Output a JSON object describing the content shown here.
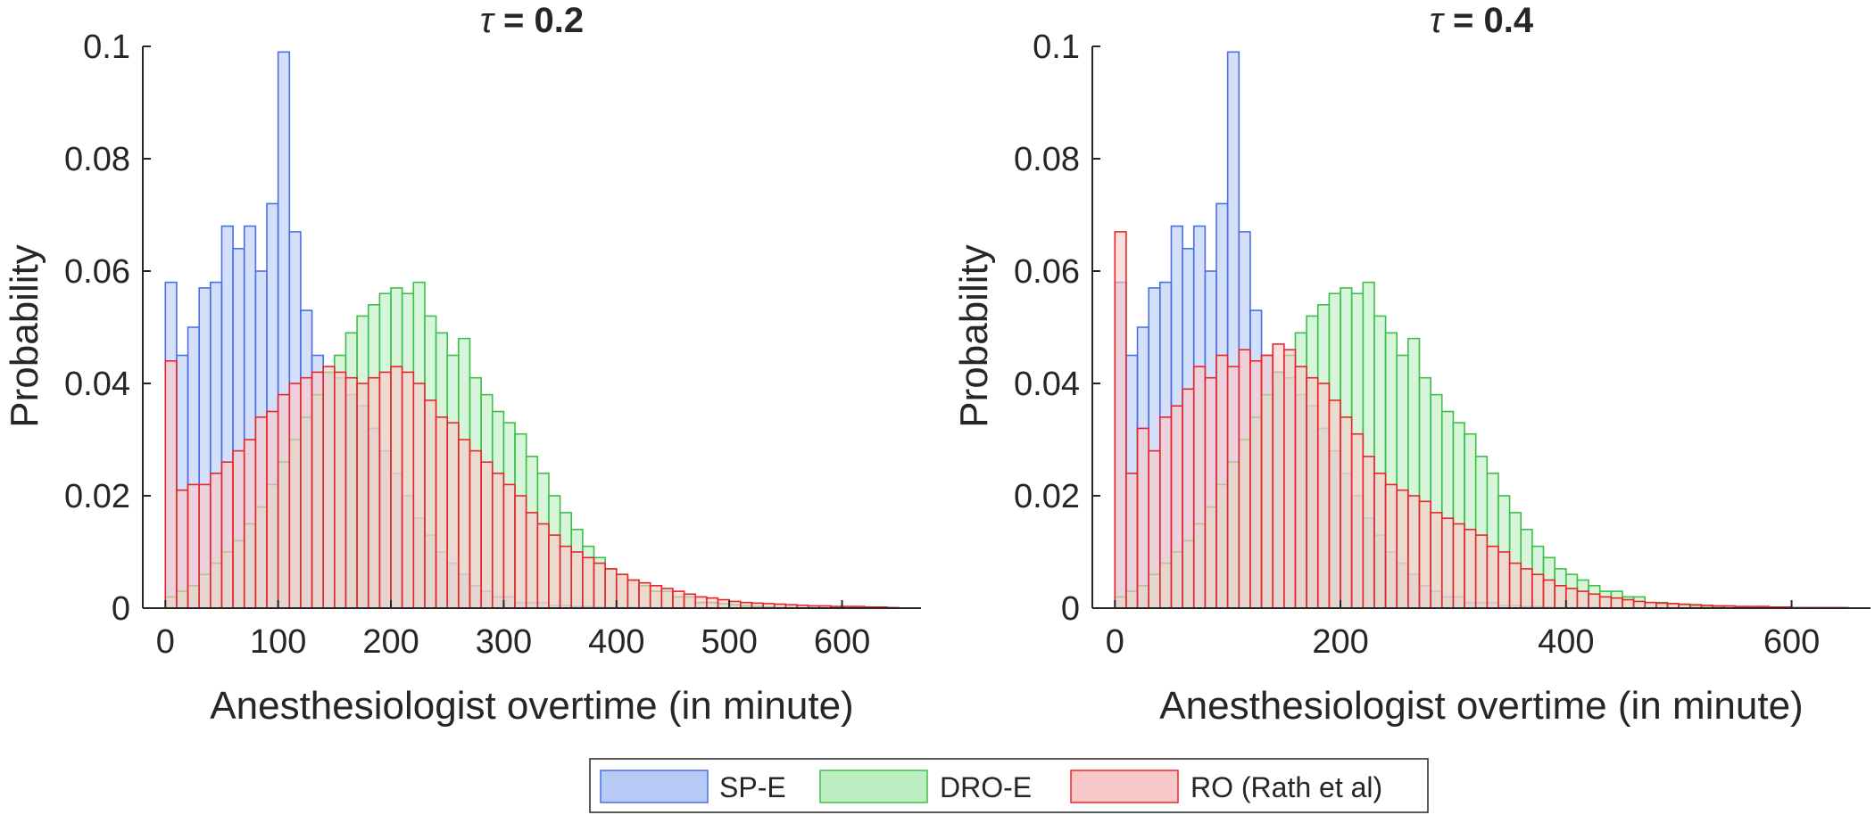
{
  "colors": {
    "sp_e": {
      "fill": "#b7c9f5",
      "stroke": "#4a6fe3"
    },
    "dro_e": {
      "fill": "#bdeec2",
      "stroke": "#3fbf4a"
    },
    "ro": {
      "fill": "#f8c8c8",
      "stroke": "#e8262a"
    },
    "axis": "#262626"
  },
  "legend": {
    "position": "bottom-center",
    "entries": [
      "SP-E",
      "DRO-E",
      "RO (Rath et al)"
    ]
  },
  "chart_data": [
    {
      "type": "histogram",
      "title_symbol": "τ",
      "title_text": " = 0.2",
      "xlabel": "Anesthesiologist overtime (in minute)",
      "ylabel": "Probability",
      "xlim": [
        -20,
        670
      ],
      "ylim": [
        0,
        0.1
      ],
      "xticks": [
        0,
        100,
        200,
        300,
        400,
        500,
        600
      ],
      "xtick_labels": [
        "0",
        "100",
        "200",
        "300",
        "400",
        "500",
        "600"
      ],
      "yticks": [
        0,
        0.02,
        0.04,
        0.06,
        0.08,
        0.1
      ],
      "ytick_labels": [
        "0",
        "0.02",
        "0.04",
        "0.06",
        "0.08",
        "0.1"
      ],
      "bin_start": 0,
      "bin_width": 10,
      "series": [
        {
          "name": "SP-E",
          "key": "sp_e",
          "values": [
            0.058,
            0.045,
            0.05,
            0.057,
            0.058,
            0.068,
            0.064,
            0.068,
            0.06,
            0.072,
            0.099,
            0.067,
            0.053,
            0.045,
            0.042,
            0.041,
            0.038,
            0.036,
            0.032,
            0.028,
            0.024,
            0.02,
            0.016,
            0.013,
            0.01,
            0.008,
            0.006,
            0.004,
            0.003,
            0.002,
            0.002,
            0.001,
            0.001,
            0.001,
            0.0005,
            0.0005,
            0.0003,
            0.0003,
            0.0002,
            0.0001,
            0.0001,
            0.0001,
            0.0001,
            0,
            0,
            0,
            0,
            0,
            0,
            0,
            0,
            0,
            0,
            0,
            0,
            0,
            0,
            0,
            0,
            0,
            0,
            0,
            0,
            0,
            0
          ]
        },
        {
          "name": "DRO-E",
          "key": "dro_e",
          "values": [
            0.002,
            0.003,
            0.004,
            0.006,
            0.008,
            0.01,
            0.012,
            0.015,
            0.018,
            0.022,
            0.026,
            0.03,
            0.034,
            0.038,
            0.042,
            0.045,
            0.049,
            0.052,
            0.054,
            0.056,
            0.057,
            0.056,
            0.058,
            0.052,
            0.049,
            0.045,
            0.048,
            0.041,
            0.038,
            0.035,
            0.033,
            0.031,
            0.027,
            0.024,
            0.02,
            0.017,
            0.014,
            0.011,
            0.009,
            0.007,
            0.006,
            0.005,
            0.004,
            0.003,
            0.003,
            0.002,
            0.002,
            0.001,
            0.001,
            0.0008,
            0.0006,
            0.0004,
            0.0003,
            0.0002,
            0.0001,
            0.0001,
            0,
            0,
            0,
            0,
            0,
            0,
            0,
            0,
            0
          ]
        },
        {
          "name": "RO (Rath et al)",
          "key": "ro",
          "values": [
            0.044,
            0.021,
            0.022,
            0.022,
            0.024,
            0.026,
            0.028,
            0.03,
            0.034,
            0.035,
            0.038,
            0.04,
            0.041,
            0.042,
            0.043,
            0.042,
            0.041,
            0.04,
            0.041,
            0.042,
            0.043,
            0.042,
            0.04,
            0.037,
            0.034,
            0.033,
            0.03,
            0.028,
            0.026,
            0.024,
            0.022,
            0.02,
            0.017,
            0.015,
            0.013,
            0.011,
            0.01,
            0.009,
            0.008,
            0.007,
            0.006,
            0.005,
            0.0045,
            0.004,
            0.0035,
            0.003,
            0.0025,
            0.002,
            0.0018,
            0.0015,
            0.0012,
            0.001,
            0.0009,
            0.0008,
            0.0007,
            0.0006,
            0.0005,
            0.0004,
            0.0004,
            0.0003,
            0.0003,
            0.0003,
            0.0002,
            0.0002,
            0.0001
          ]
        }
      ]
    },
    {
      "type": "histogram",
      "title_symbol": "τ",
      "title_text": " = 0.4",
      "xlabel": "Anesthesiologist overtime (in minute)",
      "ylabel": "Probability",
      "xlim": [
        -20,
        670
      ],
      "ylim": [
        0,
        0.1
      ],
      "xticks": [
        0,
        200,
        400,
        600
      ],
      "xtick_labels": [
        "0",
        "200",
        "400",
        "600"
      ],
      "yticks": [
        0,
        0.02,
        0.04,
        0.06,
        0.08,
        0.1
      ],
      "ytick_labels": [
        "0",
        "0.02",
        "0.04",
        "0.06",
        "0.08",
        "0.1"
      ],
      "bin_start": 0,
      "bin_width": 10,
      "series": [
        {
          "name": "SP-E",
          "key": "sp_e",
          "values": [
            0.058,
            0.045,
            0.05,
            0.057,
            0.058,
            0.068,
            0.064,
            0.068,
            0.06,
            0.072,
            0.099,
            0.067,
            0.053,
            0.045,
            0.042,
            0.041,
            0.038,
            0.036,
            0.032,
            0.028,
            0.024,
            0.02,
            0.016,
            0.013,
            0.01,
            0.008,
            0.006,
            0.004,
            0.003,
            0.002,
            0.002,
            0.001,
            0.001,
            0.001,
            0.0005,
            0.0005,
            0.0003,
            0.0003,
            0.0002,
            0.0001,
            0.0001,
            0.0001,
            0.0001,
            0,
            0,
            0,
            0,
            0,
            0,
            0,
            0,
            0,
            0,
            0,
            0,
            0,
            0,
            0,
            0,
            0,
            0,
            0,
            0,
            0,
            0
          ]
        },
        {
          "name": "DRO-E",
          "key": "dro_e",
          "values": [
            0.002,
            0.003,
            0.004,
            0.006,
            0.008,
            0.01,
            0.012,
            0.015,
            0.018,
            0.022,
            0.026,
            0.03,
            0.034,
            0.038,
            0.042,
            0.045,
            0.049,
            0.052,
            0.054,
            0.056,
            0.057,
            0.056,
            0.058,
            0.052,
            0.049,
            0.045,
            0.048,
            0.041,
            0.038,
            0.035,
            0.033,
            0.031,
            0.027,
            0.024,
            0.02,
            0.017,
            0.014,
            0.011,
            0.009,
            0.007,
            0.006,
            0.005,
            0.004,
            0.003,
            0.003,
            0.002,
            0.002,
            0.001,
            0.001,
            0.0008,
            0.0006,
            0.0004,
            0.0003,
            0.0002,
            0.0001,
            0.0001,
            0,
            0,
            0,
            0,
            0,
            0,
            0,
            0,
            0
          ]
        },
        {
          "name": "RO (Rath et al)",
          "key": "ro",
          "values": [
            0.067,
            0.024,
            0.032,
            0.028,
            0.034,
            0.036,
            0.039,
            0.043,
            0.041,
            0.045,
            0.043,
            0.046,
            0.044,
            0.045,
            0.047,
            0.046,
            0.043,
            0.041,
            0.04,
            0.037,
            0.034,
            0.031,
            0.027,
            0.024,
            0.022,
            0.021,
            0.02,
            0.019,
            0.017,
            0.016,
            0.015,
            0.014,
            0.013,
            0.011,
            0.01,
            0.008,
            0.007,
            0.006,
            0.005,
            0.004,
            0.0035,
            0.003,
            0.0025,
            0.002,
            0.0018,
            0.0015,
            0.0012,
            0.001,
            0.0009,
            0.0008,
            0.0007,
            0.0006,
            0.0005,
            0.0004,
            0.0004,
            0.0003,
            0.0003,
            0.0003,
            0.0002,
            0.0002,
            0.0001,
            0.0001,
            0.0001,
            0.0001,
            0.0001
          ]
        }
      ]
    }
  ]
}
